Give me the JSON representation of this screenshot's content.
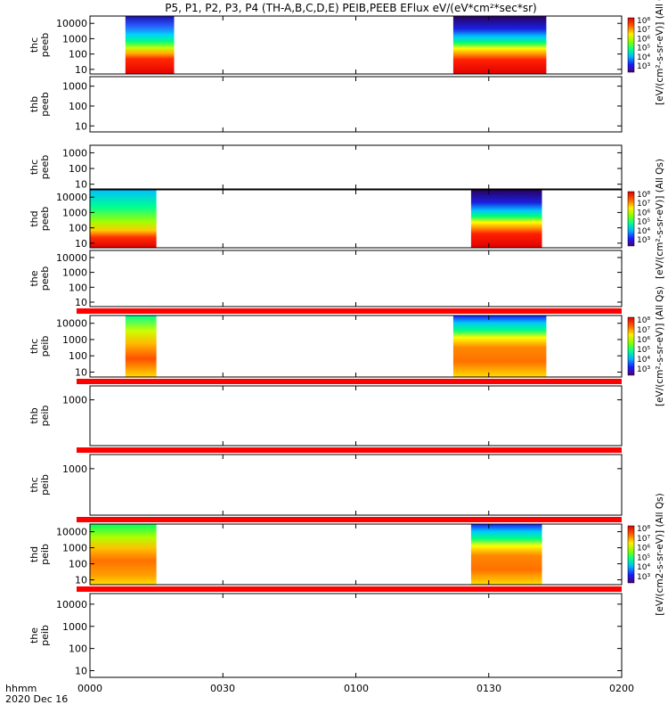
{
  "title": "P5, P1, P2, P3, P4 (TH-A,B,C,D,E) PEIB,PEEB EFlux eV/(eV*cm²*sec*sr)",
  "time_axis": {
    "ticks": [
      "0000",
      "0030",
      "0100",
      "0130",
      "0200"
    ],
    "row_label": "hhmm",
    "date_label": "2020 Dec 16"
  },
  "colorbar_ticks": [
    "10⁸",
    "10⁷",
    "10⁶",
    "10⁵",
    "10⁴",
    "10³"
  ],
  "colorbar_units": [
    "[eV/(cm²-s-sr-eV)] (All Qs)",
    "[eV/(cm2-s-sr-eV)] (All Qs)"
  ],
  "chart_data": [
    {
      "type": "heatmap",
      "probe": "thc",
      "species": "peeb",
      "ylabel": [
        "thc",
        "peeb"
      ],
      "yticks": [
        "10000",
        "1000",
        "100",
        "10"
      ],
      "ylim": [
        5,
        30000
      ],
      "yscale": "log",
      "xlim": [
        "0000",
        "0200"
      ],
      "has_data": true,
      "colorbar": true,
      "colorbar_label": 0,
      "blocks": [
        {
          "t_start": "0008",
          "t_end": "0019",
          "type": "peeb_a"
        },
        {
          "t_start": "0122",
          "t_end": "0143",
          "type": "peeb_b"
        }
      ]
    },
    {
      "type": "heatmap",
      "probe": "thb",
      "species": "peeb",
      "ylabel": [
        "thb",
        "peeb"
      ],
      "yticks": [
        "1000",
        "100",
        "10"
      ],
      "ylim": [
        5,
        3000
      ],
      "yscale": "log",
      "xlim": [
        "0000",
        "0200"
      ],
      "has_data": false,
      "colorbar": false,
      "blocks": []
    },
    {
      "type": "heatmap",
      "probe": "thc",
      "species": "peeb",
      "ylabel": [
        "thc",
        "peeb"
      ],
      "yticks": [
        "1000",
        "100",
        "10"
      ],
      "ylim": [
        5,
        3000
      ],
      "yscale": "log",
      "xlim": [
        "0000",
        "0200"
      ],
      "has_data": false,
      "colorbar": false,
      "blocks": []
    },
    {
      "type": "heatmap",
      "probe": "thd",
      "species": "peeb",
      "ylabel": [
        "thd",
        "peeb"
      ],
      "yticks": [
        "10000",
        "1000",
        "100",
        "10"
      ],
      "ylim": [
        5,
        30000
      ],
      "yscale": "log",
      "xlim": [
        "0000",
        "0200"
      ],
      "has_data": true,
      "colorbar": true,
      "colorbar_label": 0,
      "blocks": [
        {
          "t_start": "0000",
          "t_end": "0015",
          "type": "peeb_c"
        },
        {
          "t_start": "0126",
          "t_end": "0142",
          "type": "peeb_b"
        }
      ]
    },
    {
      "type": "heatmap",
      "probe": "the",
      "species": "peeb",
      "ylabel": [
        "the",
        "peeb"
      ],
      "yticks": [
        "10000",
        "1000",
        "100",
        "10"
      ],
      "ylim": [
        5,
        30000
      ],
      "yscale": "log",
      "xlim": [
        "0000",
        "0200"
      ],
      "has_data": false,
      "colorbar": false,
      "blocks": []
    },
    {
      "type": "heatmap",
      "probe": "thc",
      "species": "peib",
      "ylabel": [
        "thc",
        "peib"
      ],
      "yticks": [
        "10000",
        "1000",
        "100",
        "10"
      ],
      "ylim": [
        5,
        30000
      ],
      "yscale": "log",
      "xlim": [
        "0000",
        "0200"
      ],
      "has_data": true,
      "colorbar": true,
      "colorbar_label": 0,
      "blocks": [
        {
          "t_start": "0008",
          "t_end": "0015",
          "type": "peib_a"
        },
        {
          "t_start": "0122",
          "t_end": "0143",
          "type": "peib_b"
        }
      ]
    },
    {
      "type": "heatmap",
      "probe": "thb",
      "species": "peib",
      "ylabel": [
        "thb",
        "peib"
      ],
      "yticks": [
        "1000"
      ],
      "ylim": [
        5,
        5000
      ],
      "yscale": "log",
      "xlim": [
        "0000",
        "0200"
      ],
      "has_data": false,
      "colorbar": false,
      "blocks": []
    },
    {
      "type": "heatmap",
      "probe": "thc",
      "species": "peib",
      "ylabel": [
        "thc",
        "peib"
      ],
      "yticks": [
        "1000"
      ],
      "ylim": [
        5,
        5000
      ],
      "yscale": "log",
      "xlim": [
        "0000",
        "0200"
      ],
      "has_data": false,
      "colorbar": false,
      "blocks": []
    },
    {
      "type": "heatmap",
      "probe": "thd",
      "species": "peib",
      "ylabel": [
        "thd",
        "peib"
      ],
      "yticks": [
        "10000",
        "1000",
        "100",
        "10"
      ],
      "ylim": [
        5,
        30000
      ],
      "yscale": "log",
      "xlim": [
        "0000",
        "0200"
      ],
      "has_data": true,
      "colorbar": true,
      "colorbar_label": 1,
      "blocks": [
        {
          "t_start": "0000",
          "t_end": "0015",
          "type": "peib_c"
        },
        {
          "t_start": "0126",
          "t_end": "0142",
          "type": "peib_b"
        }
      ]
    },
    {
      "type": "heatmap",
      "probe": "the",
      "species": "peib",
      "ylabel": [
        "the",
        "peib"
      ],
      "yticks": [
        "10000",
        "1000",
        "100",
        "10"
      ],
      "ylim": [
        5,
        30000
      ],
      "yscale": "log",
      "xlim": [
        "0000",
        "0200"
      ],
      "has_data": false,
      "colorbar": false,
      "blocks": []
    }
  ]
}
